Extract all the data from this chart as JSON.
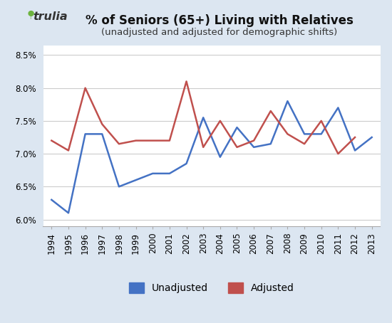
{
  "title": "% of Seniors (65+) Living with Relatives",
  "subtitle": "(unadjusted and adjusted for demographic shifts)",
  "years": [
    1994,
    1995,
    1996,
    1997,
    1998,
    1999,
    2000,
    2001,
    2002,
    2003,
    2004,
    2005,
    2006,
    2007,
    2008,
    2009,
    2010,
    2011,
    2012,
    2013
  ],
  "unadjusted": [
    6.3,
    6.1,
    7.3,
    7.3,
    6.5,
    6.6,
    6.7,
    6.7,
    6.85,
    7.55,
    6.95,
    7.4,
    7.1,
    7.15,
    7.8,
    7.3,
    7.3,
    7.7,
    7.05,
    7.25
  ],
  "adjusted": [
    7.2,
    7.05,
    8.0,
    7.45,
    7.15,
    7.2,
    7.2,
    7.2,
    8.1,
    7.1,
    7.5,
    7.1,
    7.2,
    7.65,
    7.3,
    7.15,
    7.5,
    7.0,
    7.25,
    null
  ],
  "unadjusted_color": "#4472C4",
  "adjusted_color": "#C0504D",
  "background_color": "#DCE6F1",
  "plot_bg_color": "#FFFFFF",
  "ylim": [
    5.9,
    8.65
  ],
  "yticks": [
    6.0,
    6.5,
    7.0,
    7.5,
    8.0,
    8.5
  ],
  "ytick_labels": [
    "6.0%",
    "6.5%",
    "7.0%",
    "7.5%",
    "8.0%",
    "8.5%"
  ],
  "logo_pin_color": "#6DB33F",
  "logo_text_color": "#333333",
  "line_width": 1.8,
  "title_fontsize": 12,
  "subtitle_fontsize": 9.5,
  "legend_fontsize": 10,
  "tick_fontsize": 8.5
}
